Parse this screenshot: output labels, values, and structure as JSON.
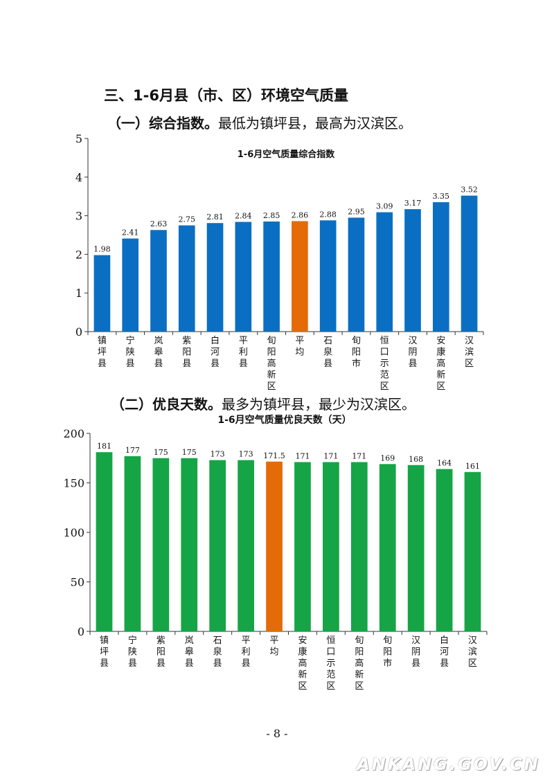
{
  "section_heading": "三、1-6月县（市、区）环境空气质量",
  "subsection1": {
    "lead": "（一）综合指数。",
    "text": "最低为镇坪县，最高为汉滨区。"
  },
  "subsection2": {
    "lead": "（二）优良天数。",
    "text": "最多为镇坪县，最少为汉滨区。"
  },
  "page_number": "- 8 -",
  "watermark": "ANKANG.GOV.CN",
  "colors": {
    "bar_blue": "#0a6fc2",
    "bar_green": "#16a546",
    "bar_orange": "#e36c09"
  },
  "chart_data": [
    {
      "type": "bar",
      "title": "1-6月空气质量综合指数",
      "categories": [
        "镇坪县",
        "宁陕县",
        "岚皋县",
        "紫阳县",
        "白河县",
        "平利县",
        "旬阳高新区",
        "平均",
        "石泉县",
        "旬阳市",
        "恒口示范区",
        "汉阴县",
        "安康高新区",
        "汉滨区"
      ],
      "values": [
        1.98,
        2.41,
        2.63,
        2.75,
        2.81,
        2.84,
        2.85,
        2.86,
        2.88,
        2.95,
        3.09,
        3.17,
        3.35,
        3.52
      ],
      "value_labels": [
        "1.98",
        "2.41",
        "2.63",
        "2.75",
        "2.81",
        "2.84",
        "2.85",
        "2.86",
        "2.88",
        "2.95",
        "3.09",
        "3.17",
        "3.35",
        "3.52"
      ],
      "highlight_category": "平均",
      "ylim": [
        0,
        5
      ],
      "yticks": [
        "0",
        "1",
        "2",
        "3",
        "4",
        "5"
      ],
      "xlabel": "",
      "ylabel": "",
      "grid": false
    },
    {
      "type": "bar",
      "title": "1-6月空气质量优良天数（天）",
      "categories": [
        "镇坪县",
        "宁陕县",
        "紫阳县",
        "岚皋县",
        "石泉县",
        "平利县",
        "平均",
        "安康高新区",
        "恒口示范区",
        "旬阳高新区",
        "旬阳市",
        "汉阴县",
        "白河县",
        "汉滨区"
      ],
      "values": [
        181,
        177,
        175,
        175,
        173,
        173,
        171.5,
        171,
        171,
        171,
        169,
        168,
        164,
        161
      ],
      "value_labels": [
        "181",
        "177",
        "175",
        "175",
        "173",
        "173",
        "171.5",
        "171",
        "171",
        "171",
        "169",
        "168",
        "164",
        "161"
      ],
      "highlight_category": "平均",
      "ylim": [
        0,
        200
      ],
      "yticks": [
        "0",
        "50",
        "100",
        "150",
        "200"
      ],
      "xlabel": "",
      "ylabel": "",
      "grid": false
    }
  ]
}
